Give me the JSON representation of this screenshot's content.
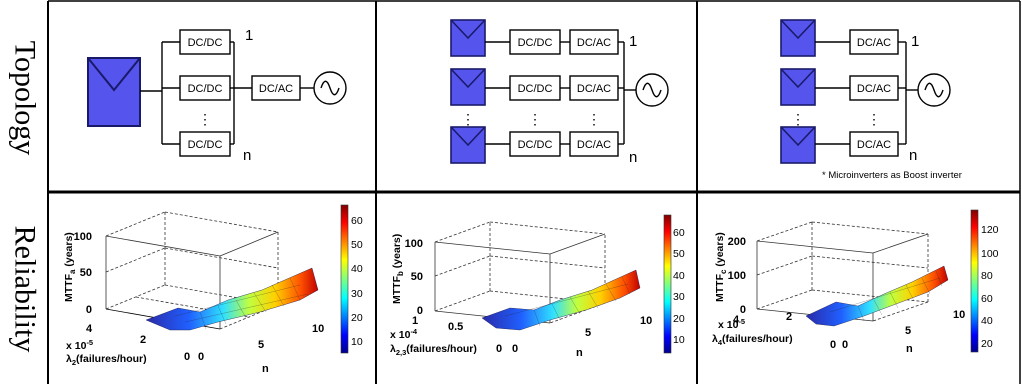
{
  "row_labels": {
    "topology": "Topology",
    "reliability": "Reliability"
  },
  "panel_a": {
    "topology": {
      "converter_1": "DC/DC",
      "converter_2": "DC/DC",
      "converter_3": "DC/DC",
      "inverter": "DC/AC",
      "label_1": "1",
      "label_n": "n",
      "dots": "⋮"
    },
    "plot": {
      "z_ticks": [
        "100",
        "50",
        "0"
      ],
      "z_label": "MTTF",
      "z_label_sub": "a",
      "z_label_unit": " (years)",
      "y_ticks": [
        "4",
        "2",
        "0"
      ],
      "y_multiplier": "x 10",
      "y_multiplier_exp": "-5",
      "y_label_pre": "λ",
      "y_label_sub": "2",
      "y_label_post": "(failures/hour)",
      "x_ticks": [
        "0",
        "5",
        "10"
      ],
      "x_label": "n",
      "colorbar_ticks": [
        "60",
        "50",
        "40",
        "30",
        "20",
        "10"
      ]
    }
  },
  "panel_b": {
    "topology": {
      "dcdc_1": "DC/DC",
      "dcdc_2": "DC/DC",
      "dcdc_3": "DC/DC",
      "dcac_1": "DC/AC",
      "dcac_2": "DC/AC",
      "dcac_3": "DC/AC",
      "label_1": "1",
      "label_n": "n",
      "dots": "⋮"
    },
    "plot": {
      "z_ticks": [
        "100",
        "50",
        "0"
      ],
      "z_label": "MTTF",
      "z_label_sub": "b",
      "z_label_unit": " (years)",
      "y_ticks": [
        "1",
        "0.5",
        "0"
      ],
      "y_multiplier": "x 10",
      "y_multiplier_exp": "-4",
      "y_label_pre": "λ",
      "y_label_sub": "2,3",
      "y_label_post": "(failures/hour)",
      "x_ticks": [
        "0",
        "5",
        "10"
      ],
      "x_label": "n",
      "colorbar_ticks": [
        "60",
        "50",
        "40",
        "30",
        "20",
        "10"
      ]
    }
  },
  "panel_c": {
    "topology": {
      "dcac_1": "DC/AC",
      "dcac_2": "DC/AC",
      "dcac_3": "DC/AC",
      "label_1": "1",
      "label_n": "n",
      "dots": "⋮",
      "note": "* Microinverters as Boost inverter"
    },
    "plot": {
      "z_ticks": [
        "200",
        "100",
        "0"
      ],
      "z_label": "MTTF",
      "z_label_sub": "c",
      "z_label_unit": " (years)",
      "y_ticks": [
        "4",
        "2",
        "0"
      ],
      "y_multiplier": "x 10",
      "y_multiplier_exp": "-5",
      "y_label_pre": "λ",
      "y_label_sub": "4",
      "y_label_post": "(failures/hour)",
      "x_ticks": [
        "0",
        "5",
        "10"
      ],
      "x_label": "n",
      "colorbar_ticks": [
        "120",
        "100",
        "80",
        "60",
        "40",
        "20"
      ]
    }
  },
  "colors": {
    "panel_fill": "#5555ee",
    "panel_stroke": "#1a1a6a",
    "colormap": "jet"
  }
}
